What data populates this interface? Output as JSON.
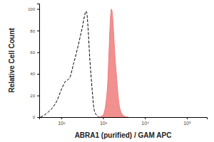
{
  "chart_data": {
    "type": "line",
    "log": "x",
    "xlabel": "ABRA1 (purified) / GAM APC",
    "ylabel": "Relative Cell Count",
    "x": [
      32,
      40,
      50,
      63,
      79,
      100,
      126,
      158,
      200,
      251,
      316,
      398,
      501,
      631,
      794,
      1000,
      1259,
      1585,
      1995,
      2512,
      3162,
      3981
    ],
    "series": [
      {
        "type": "line",
        "line_style": "dashed",
        "color": "#000000",
        "values": [
          0,
          2,
          5,
          9,
          15,
          25,
          33,
          36,
          50,
          65,
          82,
          98,
          45,
          5,
          0,
          null,
          null,
          null,
          null,
          null,
          null,
          null
        ]
      },
      {
        "type": "area",
        "color": "#f07c7c",
        "values": [
          null,
          null,
          null,
          null,
          null,
          null,
          null,
          null,
          null,
          null,
          null,
          null,
          null,
          null,
          0,
          2,
          25,
          100,
          48,
          8,
          1,
          0
        ]
      }
    ],
    "xlim": [
      30,
      300000
    ],
    "xticks": [
      {
        "value": 100,
        "label": "10²"
      },
      {
        "value": 1000,
        "label": "10³"
      },
      {
        "value": 10000,
        "label": "10⁴"
      },
      {
        "value": 100000,
        "label": "10⁵"
      }
    ],
    "ylim": [
      0,
      105
    ],
    "yticks": [
      0,
      20,
      40,
      60,
      80,
      100
    ],
    "grid": false
  }
}
